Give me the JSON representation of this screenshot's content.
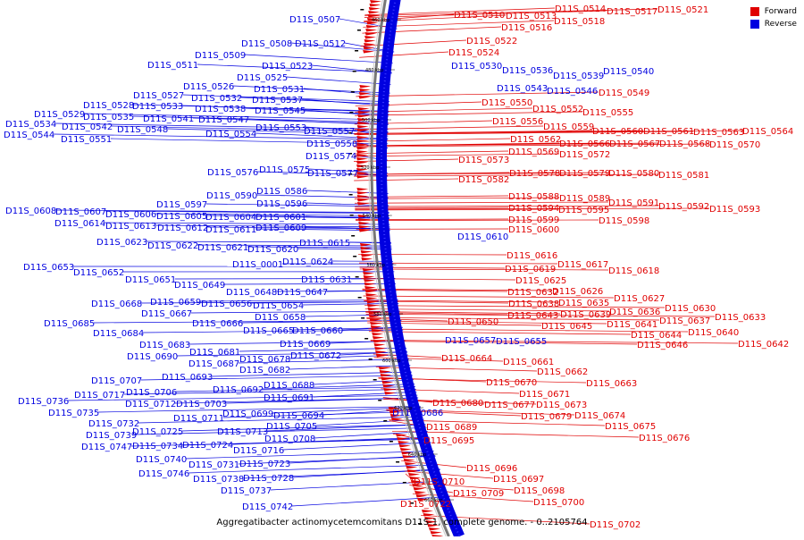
{
  "caption": "Aggregatibacter actinomycetemcomitans D11S-1, complete genome. - 0..2105764",
  "legend": [
    {
      "label": "Forward",
      "color": "#e00000"
    },
    {
      "label": "Reverse",
      "color": "#0000e0"
    }
  ],
  "colors": {
    "forward": "#e00000",
    "reverse": "#0000e0",
    "backbone": "#777777"
  },
  "scale_ticks": [
    "460 kbp",
    "480 kbp",
    "500 kbp",
    "520 kbp",
    "540 kbp",
    "560 kbp",
    "580 kbp",
    "600 kbp",
    "620 kbp",
    "640 kbp",
    "660 kbp"
  ],
  "reverse_labels": [
    "D11S_0507",
    "D11S_0508",
    "D11S_0512",
    "D11S_0509",
    "D11S_0511",
    "D11S_0523",
    "D11S_0525",
    "D11S_0526",
    "D11S_0531",
    "D11S_0527",
    "D11S_0532",
    "D11S_0537",
    "D11S_0528",
    "D11S_0533",
    "D11S_0538",
    "D11S_0545",
    "D11S_0529",
    "D11S_0535",
    "D11S_0541",
    "D11S_0547",
    "D11S_0534",
    "D11S_0542",
    "D11S_0548",
    "D11S_0553",
    "D11S_0544",
    "D11S_0551",
    "D11S_0554",
    "D11S_0557",
    "D11S_0558",
    "D11S_0574",
    "D11S_0576",
    "D11S_0575",
    "D11S_0577",
    "D11S_0590",
    "D11S_0586",
    "D11S_0597",
    "D11S_0596",
    "D11S_0608",
    "D11S_0607",
    "D11S_0606",
    "D11S_0605",
    "D11S_0604",
    "D11S_0601",
    "D11S_0614",
    "D11S_0613",
    "D11S_0612",
    "D11S_0611",
    "D11S_0609",
    "D11S_0623",
    "D11S_0622",
    "D11S_0621",
    "D11S_0620",
    "D11S_0615",
    "D11S_0001",
    "D11S_0624",
    "D11S_0653",
    "D11S_0652",
    "D11S_0651",
    "D11S_0649",
    "D11S_0631",
    "D11S_0648",
    "D11S_0647",
    "D11S_0668",
    "D11S_0659",
    "D11S_0656",
    "D11S_0654",
    "D11S_0667",
    "D11S_0658",
    "D11S_0685",
    "D11S_0666",
    "D11S_0665",
    "D11S_0660",
    "D11S_0684",
    "D11S_0669",
    "D11S_0683",
    "D11S_0681",
    "D11S_0672",
    "D11S_0690",
    "D11S_0687",
    "D11S_0678",
    "D11S_0682",
    "D11S_0693",
    "D11S_0688",
    "D11S_0707",
    "D11S_0692",
    "D11S_0717",
    "D11S_0706",
    "D11S_0691",
    "D11S_0712",
    "D11S_0703",
    "D11S_0736",
    "D11S_0699",
    "D11S_0694",
    "D11S_0735",
    "D11S_0711",
    "D11S_0732",
    "D11S_0713",
    "D11S_0705",
    "D11S_0725",
    "D11S_0739",
    "D11S_0708",
    "D11S_0747",
    "D11S_0734",
    "D11S_0724",
    "D11S_0716",
    "D11S_0740",
    "D11S_0731",
    "D11S_0723",
    "D11S_0746",
    "D11S_0738",
    "D11S_0728",
    "D11S_0737",
    "D11S_0742",
    "D11S_0530",
    "D11S_0536",
    "D11S_0539",
    "D11S_0540",
    "D11S_0543",
    "D11S_0546",
    "D11S_0610",
    "D11S_0657",
    "D11S_0655",
    "D11S_0686"
  ],
  "forward_labels": [
    "D11S_0510",
    "D11S_0513",
    "D11S_0514",
    "D11S_0517",
    "D11S_0521",
    "D11S_0516",
    "D11S_0518",
    "D11S_0522",
    "D11S_0524",
    "D11S_0549",
    "D11S_0550",
    "D11S_0552",
    "D11S_0555",
    "D11S_0556",
    "D11S_0559",
    "D11S_0560",
    "D11S_0561",
    "D11S_0563",
    "D11S_0564",
    "D11S_0562",
    "D11S_0566",
    "D11S_0567",
    "D11S_0568",
    "D11S_0570",
    "D11S_0569",
    "D11S_0572",
    "D11S_0573",
    "D11S_0578",
    "D11S_0579",
    "D11S_0580",
    "D11S_0581",
    "D11S_0582",
    "D11S_0588",
    "D11S_0589",
    "D11S_0591",
    "D11S_0592",
    "D11S_0593",
    "D11S_0594",
    "D11S_0595",
    "D11S_0599",
    "D11S_0598",
    "D11S_0600",
    "D11S_0616",
    "D11S_0617",
    "D11S_0619",
    "D11S_0618",
    "D11S_0625",
    "D11S_0626",
    "D11S_0632",
    "D11S_0627",
    "D11S_0635",
    "D11S_0638",
    "D11S_0630",
    "D11S_0636",
    "D11S_0639",
    "D11S_0643",
    "D11S_0633",
    "D11S_0637",
    "D11S_0641",
    "D11S_0650",
    "D11S_0645",
    "D11S_0640",
    "D11S_0644",
    "D11S_0646",
    "D11S_0642",
    "D11S_0664",
    "D11S_0661",
    "D11S_0662",
    "D11S_0670",
    "D11S_0663",
    "D11S_0671",
    "D11S_0680",
    "D11S_0677",
    "D11S_0673",
    "D11S_0679",
    "D11S_0674",
    "D11S_0675",
    "D11S_0689",
    "D11S_0676",
    "D11S_0695",
    "D11S_0696",
    "D11S_0697",
    "D11S_0710",
    "D11S_0698",
    "D11S_0709",
    "D11S_0700",
    "D11S_0722",
    "D11S_0702"
  ]
}
